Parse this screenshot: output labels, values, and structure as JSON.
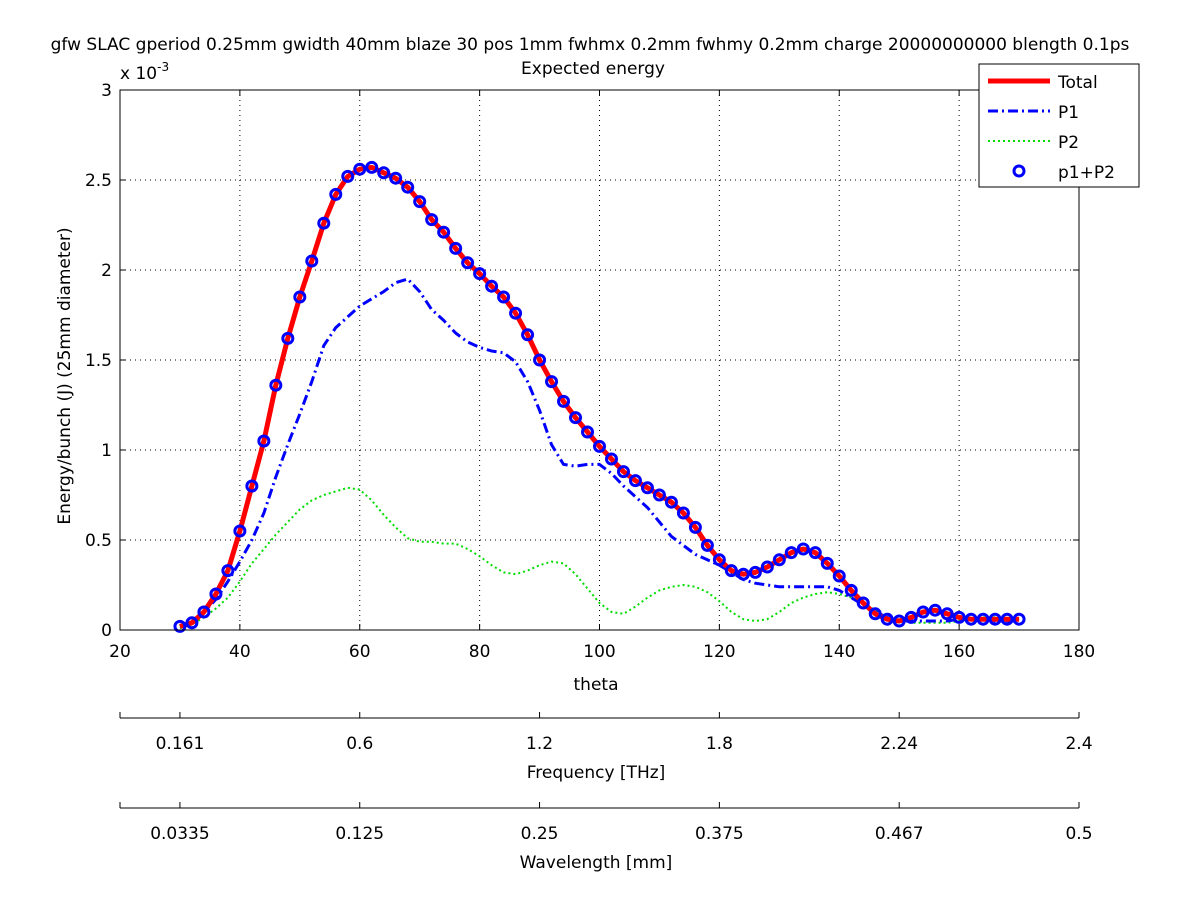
{
  "chart_data": {
    "type": "line",
    "title": "gfw SLAC gperiod 0.25mm gwidth 40mm blaze 30 pos 1mm fwhmx 0.2mm fwhmy 0.2mm charge 20000000000 blength 0.1ps",
    "subtitle": "Expected energy",
    "xlabel": "theta",
    "ylabel": "Energy/bunch (J) (25mm diameter)",
    "y_multiplier": "x 10",
    "y_multiplier_exp": "-3",
    "xlim": [
      20,
      180
    ],
    "ylim": [
      0,
      3
    ],
    "grid": true,
    "legend_position": "top-right",
    "x_ticks": [
      "20",
      "40",
      "60",
      "80",
      "100",
      "120",
      "140",
      "160",
      "180"
    ],
    "y_ticks": [
      "0",
      "0.5",
      "1",
      "1.5",
      "2",
      "2.5",
      "3"
    ],
    "secondary_axes": [
      {
        "label": "Frequency [THz]",
        "ticks": [
          {
            "theta": 30,
            "label": "0.161"
          },
          {
            "theta": 60,
            "label": "0.6"
          },
          {
            "theta": 90,
            "label": "1.2"
          },
          {
            "theta": 120,
            "label": "1.8"
          },
          {
            "theta": 150,
            "label": "2.24"
          },
          {
            "theta": 180,
            "label": "2.4"
          }
        ]
      },
      {
        "label": "Wavelength [mm]",
        "ticks": [
          {
            "theta": 30,
            "label": "0.0335"
          },
          {
            "theta": 60,
            "label": "0.125"
          },
          {
            "theta": 90,
            "label": "0.25"
          },
          {
            "theta": 120,
            "label": "0.375"
          },
          {
            "theta": 150,
            "label": "0.467"
          },
          {
            "theta": 180,
            "label": "0.5"
          }
        ]
      }
    ],
    "series": [
      {
        "name": "Total",
        "style": "solid",
        "color": "#ff0000",
        "x": [
          30,
          32,
          34,
          36,
          38,
          40,
          42,
          44,
          46,
          48,
          50,
          52,
          54,
          56,
          58,
          60,
          62,
          64,
          66,
          68,
          70,
          72,
          74,
          76,
          78,
          80,
          82,
          84,
          86,
          88,
          90,
          92,
          94,
          96,
          98,
          100,
          102,
          104,
          106,
          108,
          110,
          112,
          114,
          116,
          118,
          120,
          122,
          124,
          126,
          128,
          130,
          132,
          134,
          136,
          138,
          140,
          142,
          144,
          146,
          148,
          150,
          152,
          154,
          156,
          158,
          160,
          162,
          164,
          166,
          168,
          170
        ],
        "values": [
          0.02,
          0.04,
          0.1,
          0.2,
          0.33,
          0.55,
          0.8,
          1.05,
          1.36,
          1.62,
          1.85,
          2.05,
          2.26,
          2.42,
          2.52,
          2.56,
          2.57,
          2.54,
          2.51,
          2.46,
          2.38,
          2.28,
          2.21,
          2.12,
          2.04,
          1.98,
          1.91,
          1.85,
          1.76,
          1.64,
          1.5,
          1.38,
          1.27,
          1.18,
          1.1,
          1.02,
          0.95,
          0.88,
          0.83,
          0.79,
          0.75,
          0.71,
          0.65,
          0.57,
          0.47,
          0.39,
          0.33,
          0.31,
          0.32,
          0.35,
          0.39,
          0.43,
          0.45,
          0.43,
          0.37,
          0.3,
          0.22,
          0.15,
          0.09,
          0.06,
          0.05,
          0.07,
          0.1,
          0.11,
          0.09,
          0.07,
          0.06,
          0.06,
          0.06,
          0.06,
          0.06
        ]
      },
      {
        "name": "P1",
        "style": "dashdot",
        "color": "#0000ff",
        "x": [
          30,
          32,
          34,
          36,
          38,
          40,
          42,
          44,
          46,
          48,
          50,
          52,
          54,
          56,
          58,
          60,
          62,
          64,
          66,
          68,
          70,
          72,
          74,
          76,
          78,
          80,
          82,
          84,
          86,
          88,
          90,
          92,
          94,
          96,
          98,
          100,
          102,
          104,
          106,
          108,
          110,
          112,
          114,
          116,
          118,
          120,
          122,
          124,
          126,
          128,
          130,
          132,
          134,
          136,
          138,
          140,
          142,
          144,
          146,
          148,
          150,
          152,
          154,
          156,
          158,
          160,
          162,
          164,
          166,
          168,
          170
        ],
        "values": [
          0.02,
          0.05,
          0.1,
          0.17,
          0.27,
          0.38,
          0.5,
          0.65,
          0.85,
          1.03,
          1.2,
          1.38,
          1.58,
          1.68,
          1.74,
          1.8,
          1.84,
          1.88,
          1.93,
          1.95,
          1.88,
          1.78,
          1.72,
          1.65,
          1.6,
          1.57,
          1.55,
          1.54,
          1.49,
          1.38,
          1.22,
          1.03,
          0.92,
          0.91,
          0.92,
          0.92,
          0.87,
          0.8,
          0.74,
          0.68,
          0.6,
          0.52,
          0.47,
          0.42,
          0.39,
          0.36,
          0.32,
          0.28,
          0.26,
          0.25,
          0.24,
          0.24,
          0.24,
          0.24,
          0.24,
          0.22,
          0.18,
          0.14,
          0.1,
          0.07,
          0.05,
          0.05,
          0.05,
          0.05,
          0.05,
          0.06,
          0.06,
          0.06,
          0.05,
          0.05,
          0.05
        ]
      },
      {
        "name": "P2",
        "style": "dotted",
        "color": "#00dd00",
        "x": [
          30,
          32,
          34,
          36,
          38,
          40,
          42,
          44,
          46,
          48,
          50,
          52,
          54,
          56,
          58,
          60,
          62,
          64,
          66,
          68,
          70,
          72,
          74,
          76,
          78,
          80,
          82,
          84,
          86,
          88,
          90,
          92,
          94,
          96,
          98,
          100,
          102,
          104,
          106,
          108,
          110,
          112,
          114,
          116,
          118,
          120,
          122,
          124,
          126,
          128,
          130,
          132,
          134,
          136,
          138,
          140,
          142,
          144,
          146,
          148,
          150,
          152,
          154,
          156,
          158,
          160,
          162,
          164,
          166,
          168,
          170
        ],
        "values": [
          0.01,
          0.03,
          0.07,
          0.12,
          0.18,
          0.27,
          0.37,
          0.45,
          0.53,
          0.6,
          0.67,
          0.72,
          0.75,
          0.77,
          0.79,
          0.78,
          0.72,
          0.64,
          0.57,
          0.51,
          0.49,
          0.49,
          0.48,
          0.48,
          0.45,
          0.41,
          0.36,
          0.32,
          0.31,
          0.33,
          0.36,
          0.38,
          0.37,
          0.31,
          0.23,
          0.15,
          0.1,
          0.09,
          0.13,
          0.18,
          0.22,
          0.24,
          0.25,
          0.24,
          0.21,
          0.16,
          0.1,
          0.06,
          0.05,
          0.06,
          0.1,
          0.15,
          0.18,
          0.2,
          0.21,
          0.2,
          0.18,
          0.15,
          0.11,
          0.07,
          0.05,
          0.04,
          0.04,
          0.04,
          0.04,
          0.05,
          0.06,
          0.07,
          0.07,
          0.06,
          0.06
        ]
      },
      {
        "name": "p1+P2",
        "style": "markers",
        "color": "#0000ff",
        "x": [
          30,
          32,
          34,
          36,
          38,
          40,
          42,
          44,
          46,
          48,
          50,
          52,
          54,
          56,
          58,
          60,
          62,
          64,
          66,
          68,
          70,
          72,
          74,
          76,
          78,
          80,
          82,
          84,
          86,
          88,
          90,
          92,
          94,
          96,
          98,
          100,
          102,
          104,
          106,
          108,
          110,
          112,
          114,
          116,
          118,
          120,
          122,
          124,
          126,
          128,
          130,
          132,
          134,
          136,
          138,
          140,
          142,
          144,
          146,
          148,
          150,
          152,
          154,
          156,
          158,
          160,
          162,
          164,
          166,
          168,
          170
        ],
        "values": [
          0.02,
          0.04,
          0.1,
          0.2,
          0.33,
          0.55,
          0.8,
          1.05,
          1.36,
          1.62,
          1.85,
          2.05,
          2.26,
          2.42,
          2.52,
          2.56,
          2.57,
          2.54,
          2.51,
          2.46,
          2.38,
          2.28,
          2.21,
          2.12,
          2.04,
          1.98,
          1.91,
          1.85,
          1.76,
          1.64,
          1.5,
          1.38,
          1.27,
          1.18,
          1.1,
          1.02,
          0.95,
          0.88,
          0.83,
          0.79,
          0.75,
          0.71,
          0.65,
          0.57,
          0.47,
          0.39,
          0.33,
          0.31,
          0.32,
          0.35,
          0.39,
          0.43,
          0.45,
          0.43,
          0.37,
          0.3,
          0.22,
          0.15,
          0.09,
          0.06,
          0.05,
          0.07,
          0.1,
          0.11,
          0.09,
          0.07,
          0.06,
          0.06,
          0.06,
          0.06,
          0.06
        ]
      }
    ]
  }
}
